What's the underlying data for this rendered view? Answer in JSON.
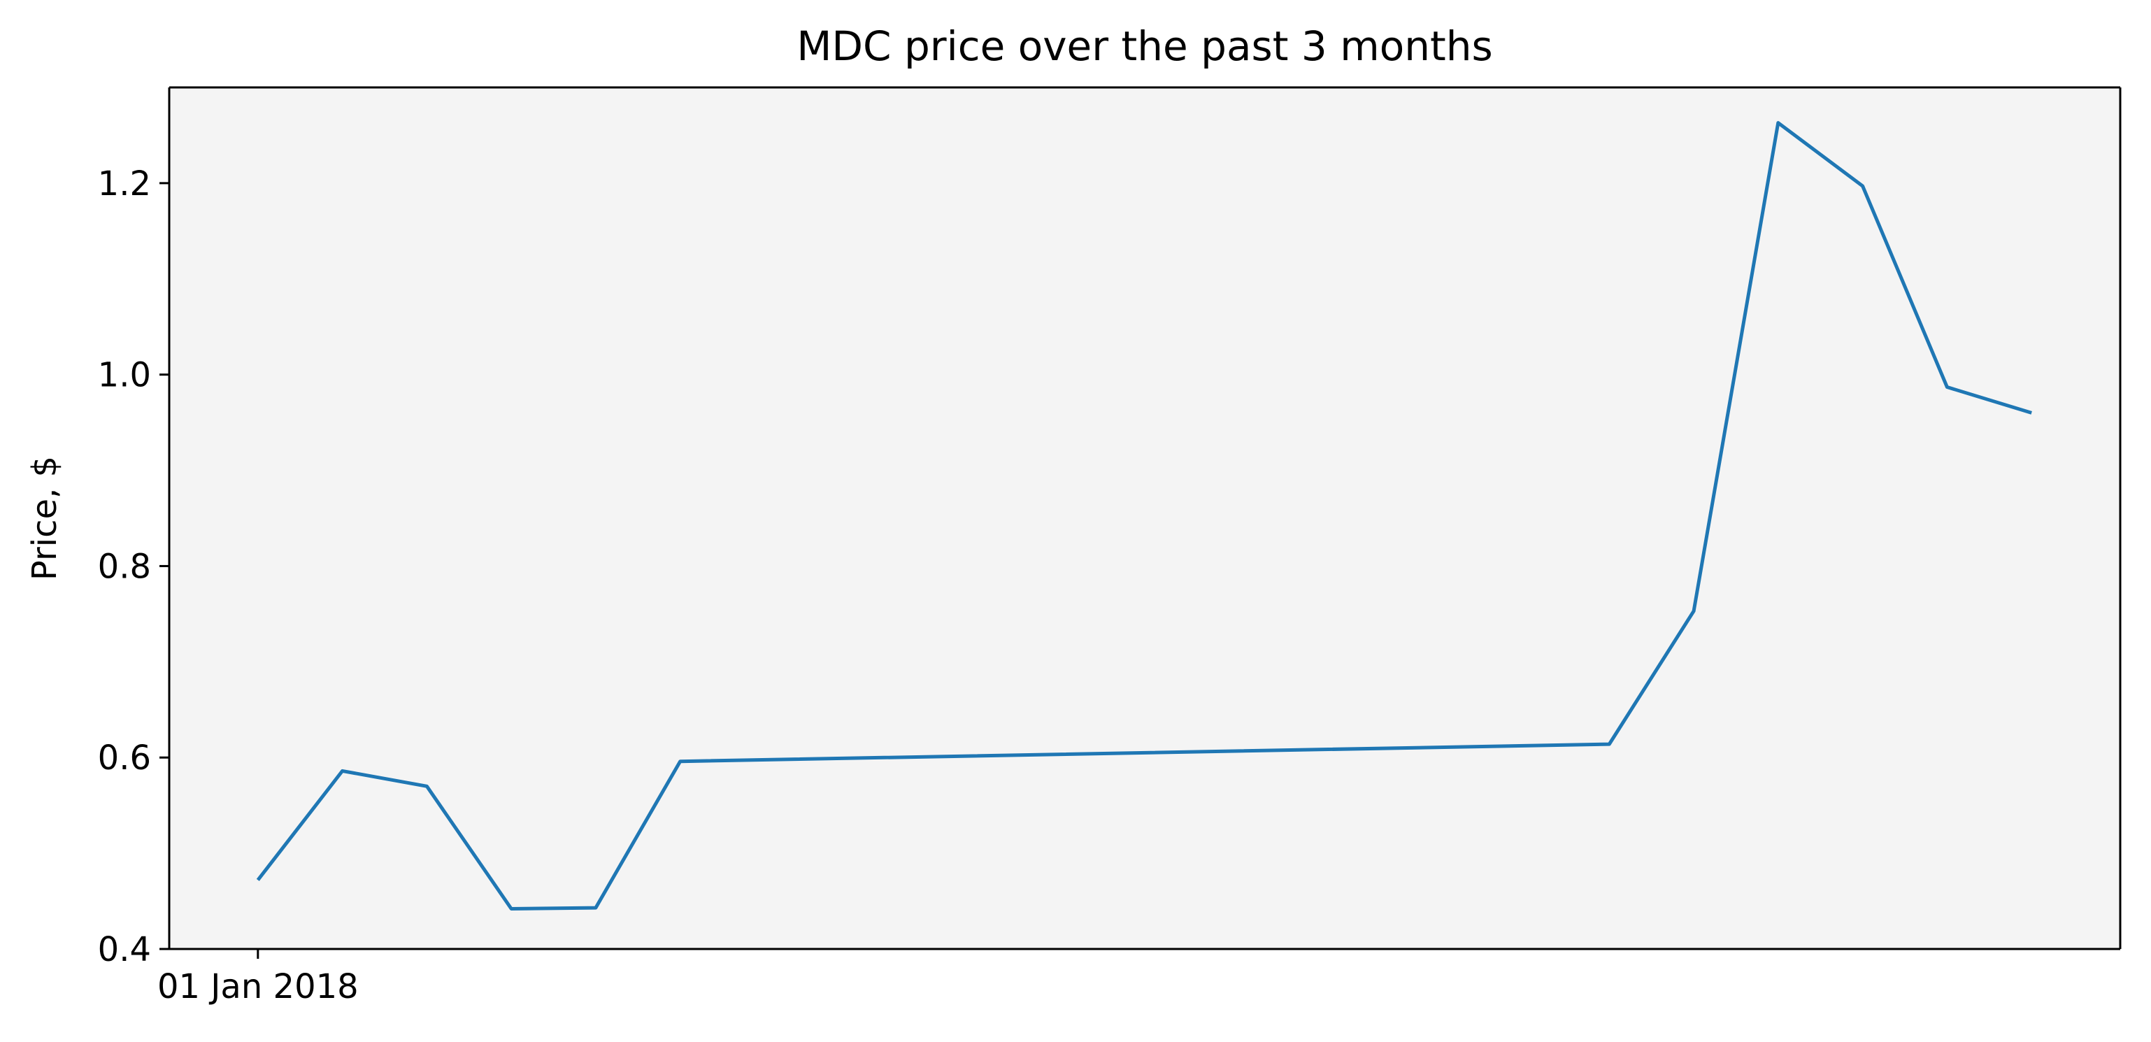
{
  "chart_data": {
    "type": "line",
    "title": "MDC price over the past 3 months",
    "xlabel": "",
    "ylabel": "Price, $",
    "ylim": [
      0.4,
      1.3
    ],
    "yticks": [
      0.4,
      0.6,
      0.8,
      1.0,
      1.2
    ],
    "ytick_labels": [
      "0.4",
      "0.6",
      "0.8",
      "1.0",
      "1.2"
    ],
    "xticks": [
      "2018-01-01"
    ],
    "xtick_labels": [
      "01 Jan 2018"
    ],
    "grid": false,
    "legend": "none",
    "colors": {
      "plot_background": "#f4f4f4",
      "line": "#1f77b4",
      "axes": "#000000"
    },
    "series": [
      {
        "x": [
          "2018-01-01",
          "2018-01-02",
          "2018-01-03",
          "2018-01-04",
          "2018-01-05",
          "2018-01-06",
          "2018-01-17",
          "2018-01-18",
          "2018-01-19",
          "2018-01-20",
          "2018-01-21",
          "2018-01-22"
        ],
        "values": [
          0.472,
          0.586,
          0.57,
          0.442,
          0.443,
          0.596,
          0.614,
          0.753,
          1.263,
          1.197,
          0.987,
          0.96
        ]
      }
    ]
  }
}
